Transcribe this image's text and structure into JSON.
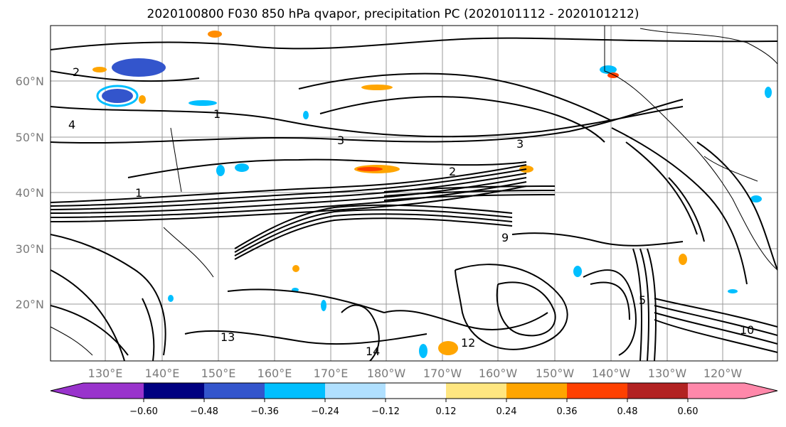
{
  "title": "2020100800 F030 850 hPa qvapor, precipitation PC (2020101112 - 2020101212)",
  "lat_labels": [
    "60°N",
    "50°N",
    "40°N",
    "30°N",
    "20°N"
  ],
  "lon_labels": [
    "130°E",
    "140°E",
    "150°E",
    "160°E",
    "170°E",
    "180°W",
    "170°W",
    "160°W",
    "150°W",
    "140°W",
    "130°W",
    "120°W"
  ],
  "contour_labels": [
    "2",
    "1",
    "3",
    "4",
    "2",
    "1",
    "3",
    "9",
    "13",
    "14",
    "12",
    "10",
    "5"
  ],
  "colorbar": {
    "ticks": [
      "−0.60",
      "−0.48",
      "−0.36",
      "−0.24",
      "−0.12",
      "0.12",
      "0.24",
      "0.36",
      "0.48",
      "0.60"
    ],
    "colors": [
      "#9933cc",
      "#000080",
      "#3355cc",
      "#00bfff",
      "#b0e0ff",
      "#ffffff",
      "#ffe680",
      "#ffa500",
      "#ff4000",
      "#b22222",
      "#ff88aa"
    ]
  }
}
